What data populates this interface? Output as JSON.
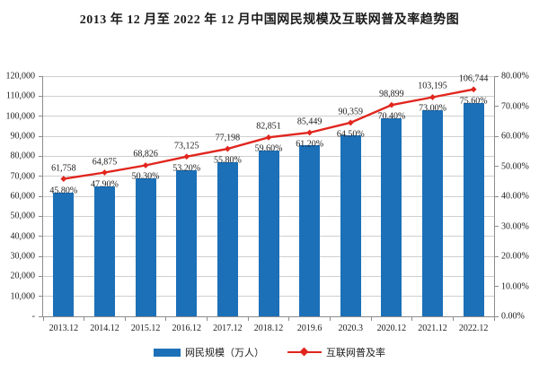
{
  "title": "2013 年 12 月至 2022 年 12 月中国网民规模及互联网普及率趋势图",
  "colors": {
    "bar": "#1c70b8",
    "line": "#e0261e",
    "grid": "#cfcfcf",
    "axis": "#8c8c8c",
    "text": "#1a1a1a",
    "background": "#ffffff"
  },
  "chart_data": {
    "type": "bar",
    "subtype": "bar+line combo, line on secondary axis",
    "title": "2013 年 12 月至 2022 年 12 月中国网民规模及互联网普及率趋势图",
    "categories": [
      "2013.12",
      "2014.12",
      "2015.12",
      "2016.12",
      "2017.12",
      "2018.12",
      "2019.6",
      "2020.3",
      "2020.12",
      "2021.12",
      "2022.12"
    ],
    "series": [
      {
        "name": "网民规模（万人）",
        "type": "bar",
        "axis": "left",
        "color": "#1c70b8",
        "values": [
          61758,
          64875,
          68826,
          73125,
          77198,
          82851,
          85449,
          90359,
          98899,
          103195,
          106744
        ],
        "labels": [
          "61,758",
          "64,875",
          "68,826",
          "73,125",
          "77,198",
          "82,851",
          "85,449",
          "90,359",
          "98,899",
          "103,195",
          "106,744"
        ]
      },
      {
        "name": "互联网普及率",
        "type": "line",
        "axis": "right",
        "color": "#e0261e",
        "values": [
          45.8,
          47.9,
          50.3,
          53.2,
          55.8,
          59.6,
          61.2,
          64.5,
          70.4,
          73.0,
          75.6
        ],
        "labels": [
          "45.80%",
          "47.90%",
          "50.30%",
          "53.20%",
          "55.80%",
          "59.60%",
          "61.20%",
          "64.50%",
          "70.40%",
          "73.00%",
          "75.60%"
        ]
      }
    ],
    "left_axis": {
      "min": 0,
      "max": 120000,
      "step": 10000,
      "tick_labels_top_to_bottom": [
        "120,000",
        "110,000",
        "100,000",
        "90,000",
        "80,000",
        "70,000",
        "60,000",
        "50,000",
        "40,000",
        "30,000",
        "20,000",
        "10,000",
        "-"
      ]
    },
    "right_axis": {
      "min": 0,
      "max": 80,
      "step": 10,
      "tick_labels_top_to_bottom": [
        "80.00%",
        "70.00%",
        "60.00%",
        "50.00%",
        "40.00%",
        "30.00%",
        "20.00%",
        "10.00%",
        "0.00%"
      ]
    },
    "grid": "horizontal gridlines only",
    "legend_position": "bottom"
  },
  "legend": {
    "bar_label": "网民规模（万人）",
    "line_label": "互联网普及率"
  }
}
